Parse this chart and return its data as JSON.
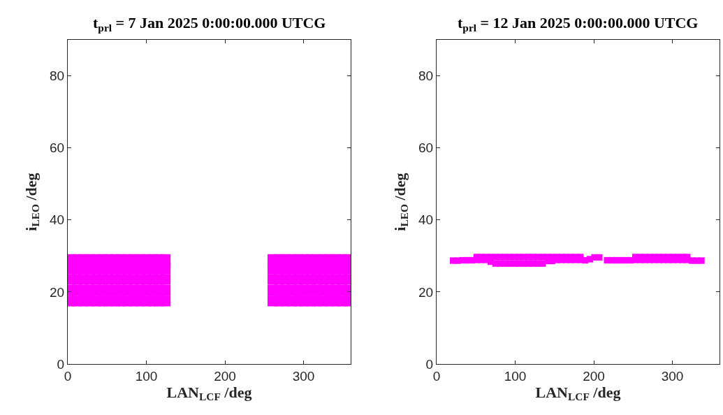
{
  "chart_data": [
    {
      "type": "scatter",
      "title": "t$_{prl}$ = 7 Jan 2025 0:00:00.000 UTCG",
      "xlabel": "LAN$_{LCF}$ /deg",
      "ylabel": "i$_{LEO}$ /deg",
      "xlim": [
        0,
        360
      ],
      "ylim": [
        0,
        90
      ],
      "xticks": [
        0,
        100,
        200,
        300
      ],
      "yticks": [
        0,
        20,
        40,
        60,
        80
      ],
      "marker": "square",
      "color": "#ff00ff",
      "x": [
        4,
        4,
        4,
        4,
        4,
        12,
        12,
        12,
        12,
        12,
        20,
        20,
        20,
        20,
        20,
        28,
        28,
        28,
        28,
        28,
        36,
        36,
        36,
        36,
        36,
        44,
        44,
        44,
        44,
        44,
        52,
        52,
        52,
        52,
        52,
        60,
        60,
        60,
        60,
        60,
        68,
        68,
        68,
        68,
        68,
        76,
        76,
        76,
        76,
        76,
        84,
        84,
        84,
        84,
        84,
        92,
        92,
        92,
        92,
        92,
        100,
        100,
        100,
        100,
        100,
        108,
        108,
        108,
        108,
        108,
        116,
        116,
        116,
        116,
        116,
        124,
        124,
        124,
        124,
        124,
        261,
        261,
        261,
        261,
        261,
        269,
        269,
        269,
        269,
        269,
        277,
        277,
        277,
        277,
        277,
        285,
        285,
        285,
        285,
        285,
        293,
        293,
        293,
        293,
        293,
        301,
        301,
        301,
        301,
        301,
        309,
        309,
        309,
        309,
        309,
        317,
        317,
        317,
        317,
        317,
        325,
        325,
        325,
        325,
        325,
        333,
        333,
        333,
        333,
        333,
        341,
        341,
        341,
        341,
        341,
        349,
        349,
        349,
        349,
        349,
        357,
        357,
        357,
        357,
        357
      ],
      "values": [
        17.5,
        20.5,
        23.5,
        26.5,
        29,
        17.5,
        20.5,
        23.5,
        26.5,
        29,
        17.5,
        20.5,
        23.5,
        26.5,
        29,
        17.5,
        20.5,
        23.5,
        26.5,
        29,
        17.5,
        20.5,
        23.5,
        26.5,
        29,
        17.5,
        20.5,
        23.5,
        26.5,
        29,
        17.5,
        20.5,
        23.5,
        26.5,
        29,
        17.5,
        20.5,
        23.5,
        26.5,
        29,
        17.5,
        20.5,
        23.5,
        26.5,
        29,
        17.5,
        20.5,
        23.5,
        26.5,
        29,
        17.5,
        20.5,
        23.5,
        26.5,
        29,
        17.5,
        20.5,
        23.5,
        26.5,
        29,
        17.5,
        20.5,
        23.5,
        26.5,
        29,
        17.5,
        20.5,
        23.5,
        26.5,
        29,
        17.5,
        20.5,
        23.5,
        26.5,
        29,
        17.5,
        20.5,
        23.5,
        26.5,
        29,
        17.5,
        20.5,
        23.5,
        26.5,
        29,
        17.5,
        20.5,
        23.5,
        26.5,
        29,
        17.5,
        20.5,
        23.5,
        26.5,
        29,
        17.5,
        20.5,
        23.5,
        26.5,
        29,
        17.5,
        20.5,
        23.5,
        26.5,
        29,
        17.5,
        20.5,
        23.5,
        26.5,
        29,
        17.5,
        20.5,
        23.5,
        26.5,
        29,
        17.5,
        20.5,
        23.5,
        26.5,
        29,
        17.5,
        20.5,
        23.5,
        26.5,
        29,
        17.5,
        20.5,
        23.5,
        26.5,
        29,
        17.5,
        20.5,
        23.5,
        26.5,
        29,
        17.5,
        20.5,
        23.5,
        26.5,
        29,
        17.5,
        20.5,
        23.5,
        26.5,
        29
      ]
    },
    {
      "type": "scatter",
      "title": "t$_{prl}$ = 12 Jan 2025 0:00:00.000 UTCG",
      "xlabel": "LAN$_{LCF}$ /deg",
      "ylabel": "i$_{LEO}$ /deg",
      "xlim": [
        0,
        360
      ],
      "ylim": [
        0,
        90
      ],
      "xticks": [
        0,
        100,
        200,
        300
      ],
      "yticks": [
        0,
        20,
        40,
        60,
        80
      ],
      "marker": "square",
      "color": "#ff00ff",
      "x": [
        21,
        27,
        33,
        39,
        45,
        51,
        51,
        57,
        57,
        63,
        63,
        69,
        69,
        75,
        75,
        81,
        81,
        87,
        87,
        93,
        93,
        99,
        99,
        105,
        105,
        111,
        111,
        117,
        117,
        123,
        123,
        129,
        129,
        135,
        135,
        141,
        141,
        147,
        147,
        153,
        153,
        159,
        159,
        165,
        165,
        171,
        171,
        177,
        177,
        183,
        183,
        189,
        195,
        201,
        207,
        217,
        223,
        229,
        235,
        241,
        247,
        253,
        253,
        259,
        259,
        265,
        265,
        271,
        271,
        277,
        277,
        283,
        283,
        289,
        289,
        295,
        295,
        301,
        301,
        307,
        307,
        313,
        313,
        319,
        319,
        325,
        331,
        337
      ],
      "values": [
        28.7,
        28.7,
        28.8,
        28.8,
        28.8,
        28.9,
        29.7,
        28.9,
        29.7,
        28.9,
        29.7,
        28.4,
        29.7,
        27.9,
        29.7,
        27.9,
        29.7,
        27.9,
        29.7,
        27.9,
        29.7,
        27.9,
        29.7,
        27.9,
        29.7,
        27.9,
        29.7,
        27.9,
        29.7,
        27.9,
        29.7,
        27.9,
        29.7,
        27.9,
        29.7,
        28.6,
        29.7,
        28.6,
        29.7,
        28.9,
        29.7,
        28.9,
        29.7,
        28.9,
        29.7,
        28.9,
        29.7,
        28.9,
        29.7,
        28.9,
        29.7,
        28.8,
        29.1,
        29.6,
        29.6,
        28.8,
        28.8,
        28.8,
        28.8,
        28.8,
        28.8,
        28.9,
        29.7,
        28.9,
        29.7,
        28.9,
        29.7,
        28.9,
        29.7,
        28.9,
        29.7,
        28.9,
        29.7,
        28.9,
        29.7,
        28.9,
        29.7,
        28.9,
        29.7,
        28.9,
        29.7,
        28.9,
        29.7,
        28.9,
        29.7,
        28.7,
        28.7,
        28.7
      ]
    }
  ]
}
